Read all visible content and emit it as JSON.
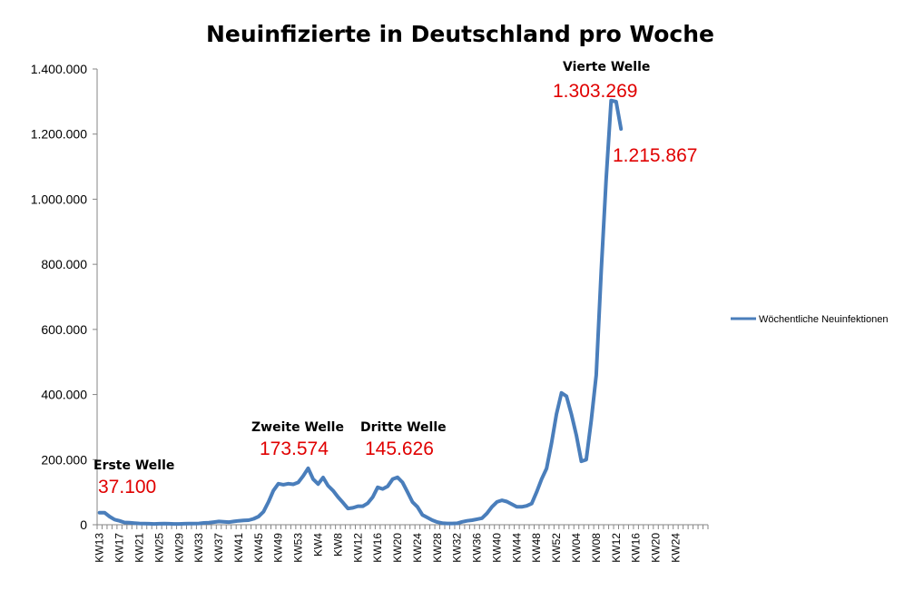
{
  "chart_data": {
    "type": "line",
    "title": "Neuinfizierte in Deutschland pro Woche",
    "xlabel": "",
    "ylabel": "",
    "ylim": [
      0,
      1400000
    ],
    "yticks": [
      0,
      200000,
      400000,
      600000,
      800000,
      1000000,
      1200000,
      1400000
    ],
    "ytick_labels": [
      "0",
      "200.000",
      "400.000",
      "600.000",
      "800.000",
      "1.000.000",
      "1.200.000",
      "1.400.000"
    ],
    "x_categories_count": 123,
    "xtick_labels": [
      "KW13",
      "KW17",
      "KW21",
      "KW25",
      "KW29",
      "KW33",
      "KW37",
      "KW41",
      "KW45",
      "KW49",
      "KW53",
      "KW4",
      "KW8",
      "KW12",
      "KW16",
      "KW20",
      "KW24",
      "KW28",
      "KW32",
      "KW36",
      "KW40",
      "KW44",
      "KW48",
      "KW52",
      "KW04",
      "KW08",
      "KW12",
      "KW16",
      "KW20",
      "KW24"
    ],
    "grid": false,
    "legend_position": "right",
    "series": [
      {
        "name": "Wöchentliche Neuinfektionen",
        "color": "#4a7ebb",
        "values": [
          37100,
          37100,
          25000,
          16000,
          12000,
          7000,
          6500,
          5000,
          4000,
          3500,
          3000,
          2500,
          3000,
          3500,
          3000,
          2500,
          2500,
          3000,
          3500,
          3500,
          4000,
          5500,
          6500,
          8000,
          10000,
          9000,
          8000,
          10000,
          12000,
          13500,
          14000,
          18000,
          25000,
          40000,
          70000,
          105000,
          126000,
          123000,
          126000,
          124000,
          130000,
          150000,
          173574,
          140000,
          125000,
          145000,
          120000,
          105000,
          85000,
          68000,
          50000,
          52000,
          57000,
          57000,
          66000,
          85000,
          115000,
          110000,
          118000,
          140000,
          145626,
          130000,
          100000,
          70000,
          55000,
          30000,
          22000,
          14000,
          8000,
          5000,
          4000,
          4000,
          4500,
          9000,
          12000,
          14000,
          17000,
          20000,
          35000,
          55000,
          70000,
          75000,
          71000,
          63000,
          55000,
          55000,
          58000,
          65000,
          100000,
          140000,
          173000,
          250000,
          340000,
          405000,
          395000,
          340000,
          275000,
          195000,
          200000,
          320000,
          460000,
          780000,
          1060000,
          1303269,
          1300000,
          1215867
        ]
      }
    ],
    "annotations": [
      {
        "label": "Erste Welle",
        "value": "37.100"
      },
      {
        "label": "Zweite Welle",
        "value": "173.574"
      },
      {
        "label": "Dritte Welle",
        "value": "145.626"
      },
      {
        "label": "Vierte Welle",
        "value": "1.303.269"
      },
      {
        "label": "",
        "value": "1.215.867"
      }
    ]
  }
}
